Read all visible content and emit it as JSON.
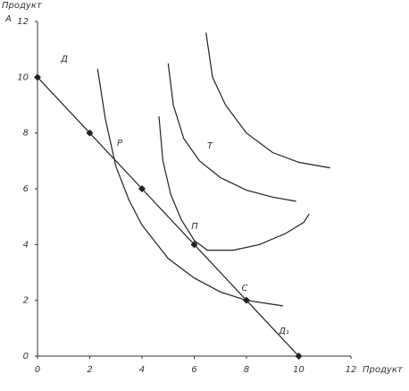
{
  "chart_data": {
    "type": "line",
    "xlabel": "Продукт",
    "ylabel": "Продукт",
    "ylabel_letter": "А",
    "xlim": [
      0,
      12
    ],
    "ylim": [
      0,
      12
    ],
    "xticks": [
      0,
      2,
      4,
      6,
      8,
      10,
      12
    ],
    "yticks": [
      0,
      2,
      4,
      6,
      8,
      10,
      12
    ],
    "annotations": [
      "Д",
      "Р",
      "Т",
      "П",
      "С",
      "Д₁"
    ],
    "series": [
      {
        "color": "#222222",
        "markers": true,
        "x": [
          0,
          2,
          4,
          6,
          8,
          10
        ],
        "values": [
          10,
          8,
          6,
          4,
          2,
          0
        ]
      },
      {
        "color": "#222222",
        "markers": false,
        "x": [
          2.3,
          2.6,
          3,
          3.5,
          4,
          5,
          6,
          7,
          8,
          9.4
        ],
        "values": [
          10.3,
          8.5,
          6.8,
          5.6,
          4.7,
          3.5,
          2.8,
          2.3,
          2.0,
          1.8
        ]
      },
      {
        "color": "#222222",
        "markers": false,
        "x": [
          4.65,
          4.8,
          5.1,
          5.5,
          6,
          6.5,
          7.5,
          8.5,
          9.5,
          10.2,
          10.4
        ],
        "values": [
          8.6,
          7,
          5.8,
          4.9,
          4.15,
          3.8,
          3.8,
          4.0,
          4.4,
          4.8,
          5.1
        ]
      },
      {
        "color": "#222222",
        "markers": false,
        "x": [
          5.0,
          5.2,
          5.6,
          6.2,
          7,
          8,
          9,
          9.9
        ],
        "values": [
          10.5,
          9,
          7.8,
          7,
          6.4,
          5.95,
          5.7,
          5.55
        ]
      },
      {
        "color": "#222222",
        "markers": false,
        "x": [
          6.45,
          6.7,
          7.2,
          8,
          9,
          10,
          11.2
        ],
        "values": [
          11.6,
          10,
          9,
          8,
          7.3,
          6.95,
          6.75
        ]
      }
    ]
  }
}
